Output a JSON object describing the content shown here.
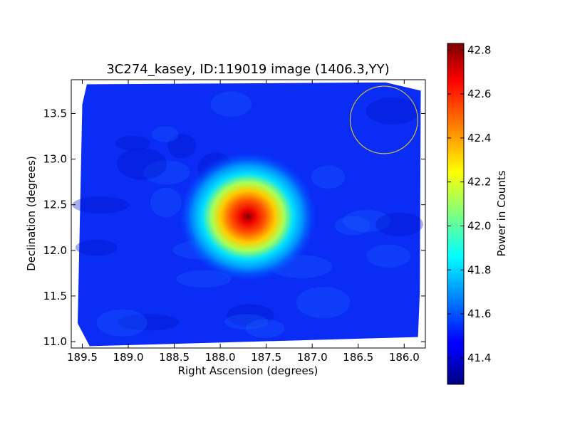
{
  "chart_data": {
    "type": "heatmap",
    "title": "3C274_kasey, ID:119019 image (1406.3,YY)",
    "xlabel": "Right Ascension (degrees)",
    "ylabel": "Declination (degrees)",
    "xlim": [
      189.62,
      185.77
    ],
    "ylim": [
      10.93,
      13.87
    ],
    "x_ticks": [
      189.5,
      189.0,
      188.5,
      188.0,
      187.5,
      187.0,
      186.5,
      186.0
    ],
    "x_tick_labels": [
      "189.5",
      "189.0",
      "188.5",
      "188.0",
      "187.5",
      "187.0",
      "186.5",
      "186.0"
    ],
    "y_ticks": [
      11.0,
      11.5,
      12.0,
      12.5,
      13.0,
      13.5
    ],
    "y_tick_labels": [
      "11.0",
      "11.5",
      "12.0",
      "12.5",
      "13.0",
      "13.5"
    ],
    "colorbar": {
      "label": "Power in Counts",
      "range": [
        41.28,
        42.83
      ],
      "ticks": [
        41.4,
        41.6,
        41.8,
        42.0,
        42.2,
        42.4,
        42.6,
        42.8
      ],
      "tick_labels": [
        "41.4",
        "41.6",
        "41.8",
        "42.0",
        "42.2",
        "42.4",
        "42.6",
        "42.8"
      ],
      "colormap": "jet"
    },
    "background_level": 41.5,
    "peak": {
      "ra": 187.7,
      "dec": 12.37,
      "value": 42.83,
      "sigma_deg": 0.25
    },
    "footprint_corners": [
      [
        189.45,
        13.82
      ],
      [
        186.2,
        13.84
      ],
      [
        185.82,
        13.75
      ],
      [
        185.83,
        11.55
      ],
      [
        185.85,
        11.05
      ],
      [
        189.42,
        10.95
      ],
      [
        189.55,
        11.2
      ],
      [
        189.5,
        13.6
      ]
    ],
    "beam_circle": {
      "ra": 186.22,
      "dec": 13.43,
      "radius_deg": 0.37,
      "color": "#c8c03a"
    },
    "grid": false,
    "axes_color": "#000000"
  }
}
